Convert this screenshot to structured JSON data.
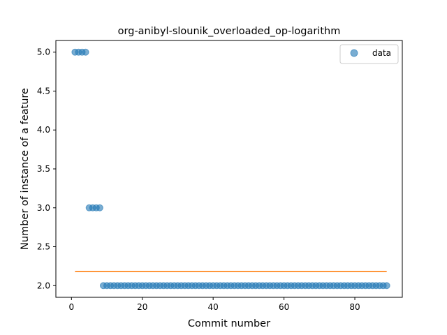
{
  "chart_data": {
    "type": "scatter",
    "title": "org-anibyl-slounik_overloaded_op-logarithm",
    "xlabel": "Commit number",
    "ylabel": "Number of instance of a feature",
    "xlim": [
      -4.4,
      93.4
    ],
    "ylim": [
      1.85,
      5.15
    ],
    "xticks": [
      0,
      20,
      40,
      60,
      80
    ],
    "yticks": [
      2.0,
      2.5,
      3.0,
      3.5,
      4.0,
      4.5,
      5.0
    ],
    "ytick_labels": [
      "2.0",
      "2.5",
      "3.0",
      "3.5",
      "4.0",
      "4.5",
      "5.0"
    ],
    "grid": false,
    "legend": {
      "position": "top-right",
      "entries": [
        "data"
      ]
    },
    "series": [
      {
        "name": "data",
        "kind": "scatter",
        "color": "#1f77b4",
        "alpha": 0.6,
        "x": [
          1,
          2,
          3,
          4,
          5,
          6,
          7,
          8,
          9,
          10,
          11,
          12,
          13,
          14,
          15,
          16,
          17,
          18,
          19,
          20,
          21,
          22,
          23,
          24,
          25,
          26,
          27,
          28,
          29,
          30,
          31,
          32,
          33,
          34,
          35,
          36,
          37,
          38,
          39,
          40,
          41,
          42,
          43,
          44,
          45,
          46,
          47,
          48,
          49,
          50,
          51,
          52,
          53,
          54,
          55,
          56,
          57,
          58,
          59,
          60,
          61,
          62,
          63,
          64,
          65,
          66,
          67,
          68,
          69,
          70,
          71,
          72,
          73,
          74,
          75,
          76,
          77,
          78,
          79,
          80,
          81,
          82,
          83,
          84,
          85,
          86,
          87,
          88,
          89
        ],
        "y": [
          5,
          5,
          5,
          5,
          3,
          3,
          3,
          3,
          2,
          2,
          2,
          2,
          2,
          2,
          2,
          2,
          2,
          2,
          2,
          2,
          2,
          2,
          2,
          2,
          2,
          2,
          2,
          2,
          2,
          2,
          2,
          2,
          2,
          2,
          2,
          2,
          2,
          2,
          2,
          2,
          2,
          2,
          2,
          2,
          2,
          2,
          2,
          2,
          2,
          2,
          2,
          2,
          2,
          2,
          2,
          2,
          2,
          2,
          2,
          2,
          2,
          2,
          2,
          2,
          2,
          2,
          2,
          2,
          2,
          2,
          2,
          2,
          2,
          2,
          2,
          2,
          2,
          2,
          2,
          2,
          2,
          2,
          2,
          2,
          2,
          2,
          2,
          2,
          2
        ]
      },
      {
        "kind": "line",
        "color": "#ff7f0e",
        "x": [
          1,
          89
        ],
        "y": [
          2.18,
          2.18
        ]
      }
    ]
  }
}
